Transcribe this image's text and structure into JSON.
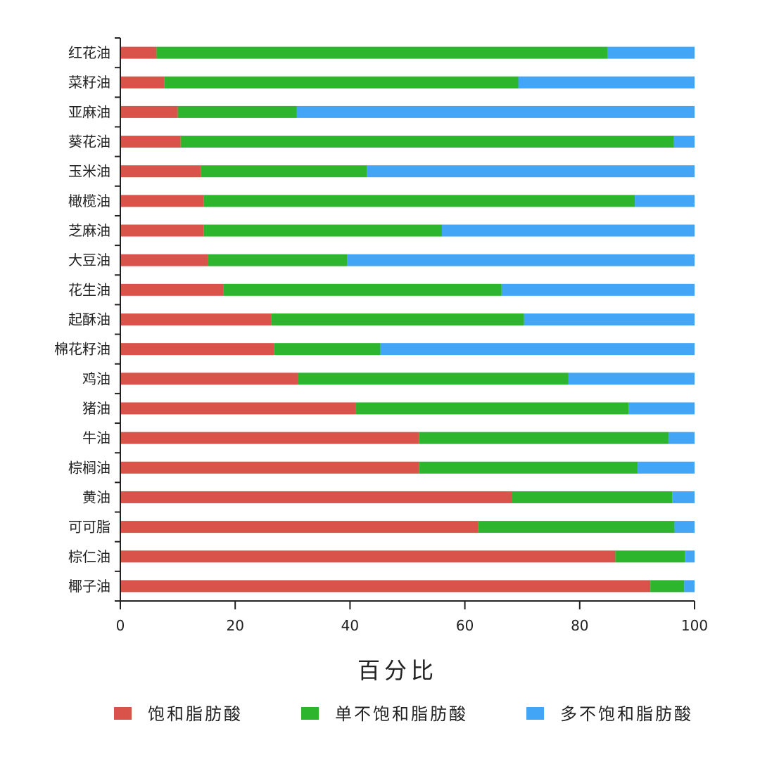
{
  "chart_data": {
    "type": "bar",
    "orientation": "horizontal",
    "stacked": true,
    "categories": [
      "红花油",
      "菜籽油",
      "亚麻油",
      "葵花油",
      "玉米油",
      "橄榄油",
      "芝麻油",
      "大豆油",
      "花生油",
      "起酥油",
      "棉花籽油",
      "鸡油",
      "猪油",
      "牛油",
      "棕榈油",
      "黄油",
      "可可脂",
      "棕仁油",
      "椰子油"
    ],
    "series": [
      {
        "name": "饱和脂肪酸",
        "color": "#d9534a",
        "values": [
          6.3,
          7.7,
          10.0,
          10.5,
          14.0,
          14.5,
          14.5,
          15.2,
          18.0,
          26.3,
          26.8,
          31.0,
          41.0,
          52.0,
          52.0,
          68.2,
          62.3,
          86.2,
          92.3
        ]
      },
      {
        "name": "单不饱和脂肪酸",
        "color": "#2db52d",
        "values": [
          78.5,
          61.6,
          20.7,
          85.9,
          28.9,
          75.1,
          41.5,
          24.3,
          48.4,
          44.0,
          18.5,
          47.0,
          47.5,
          43.5,
          38.1,
          27.9,
          34.2,
          12.1,
          5.9
        ]
      },
      {
        "name": "多不饱和脂肪酸",
        "color": "#42a5f5",
        "values": [
          15.2,
          30.7,
          69.3,
          3.6,
          57.1,
          10.4,
          44.0,
          60.5,
          33.6,
          29.7,
          54.7,
          22.0,
          11.5,
          4.5,
          9.9,
          3.9,
          3.5,
          1.7,
          1.8
        ]
      }
    ],
    "xlabel": "百分比",
    "ylabel": "",
    "xlim": [
      0,
      100
    ],
    "xticks": [
      0,
      20,
      40,
      60,
      80,
      100
    ],
    "grid": false,
    "legend_position": "bottom"
  }
}
